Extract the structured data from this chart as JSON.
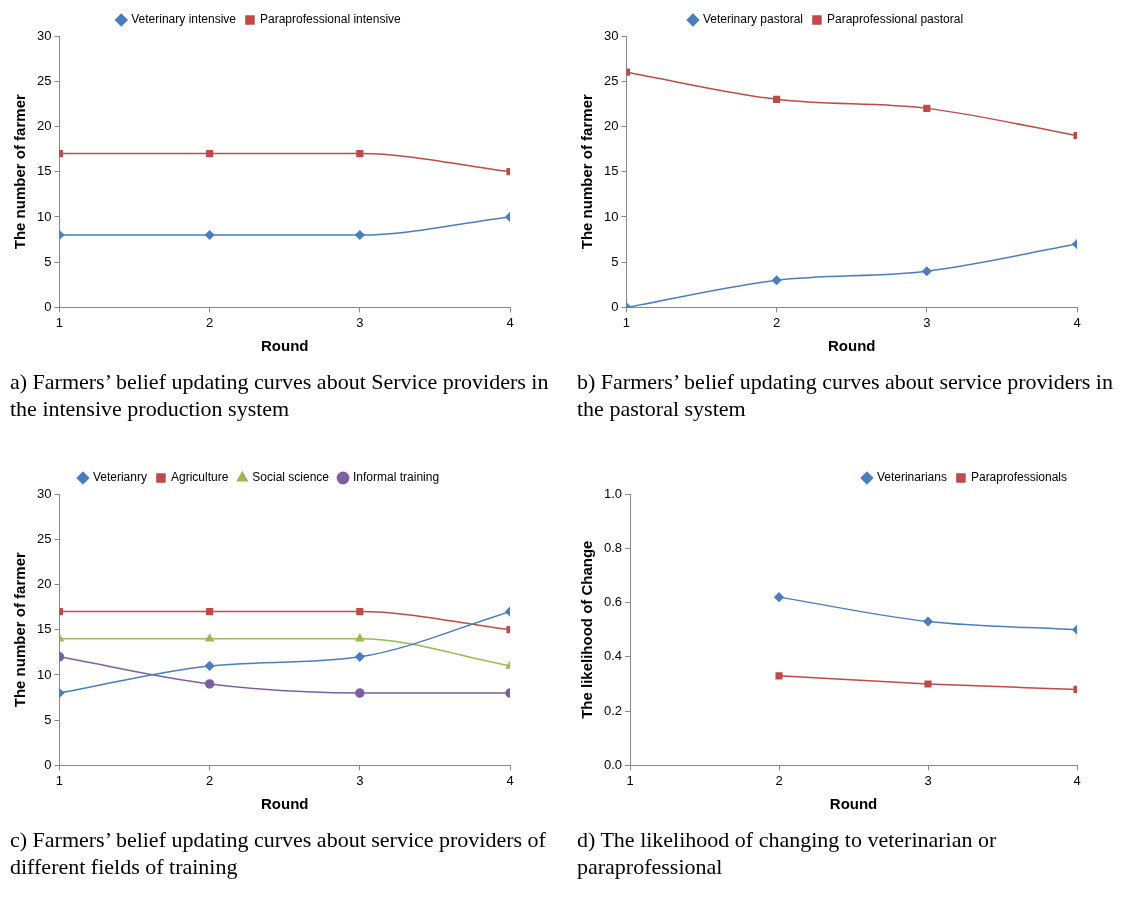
{
  "chart_data": [
    {
      "type": "line",
      "xlabel": "Round",
      "ylabel": "The number of farmer",
      "x": [
        1,
        2,
        3,
        4
      ],
      "xlim": [
        1,
        4
      ],
      "xticks": [
        1,
        2,
        3,
        4
      ],
      "ylim": [
        0,
        30
      ],
      "yticks": [
        0,
        5,
        10,
        15,
        20,
        25,
        30
      ],
      "grid": false,
      "legend": "top",
      "annotations": [
        "a) Farmers’ belief updating curves about  Service providers in the intensive production system"
      ],
      "series": [
        {
          "name": "Veterinary intensive",
          "color": "#4a7ebb",
          "marker": "diamond",
          "values": [
            8,
            8,
            8,
            10
          ]
        },
        {
          "name": "Paraprofessional intensive",
          "color": "#be4b48",
          "marker": "square",
          "values": [
            17,
            17,
            17,
            15
          ]
        }
      ]
    },
    {
      "type": "line",
      "xlabel": "Round",
      "ylabel": "The number of farmer",
      "x": [
        1,
        2,
        3,
        4
      ],
      "xlim": [
        1,
        4
      ],
      "xticks": [
        1,
        2,
        3,
        4
      ],
      "ylim": [
        0,
        30
      ],
      "yticks": [
        0,
        5,
        10,
        15,
        20,
        25,
        30
      ],
      "grid": false,
      "legend": "top",
      "annotations": [
        "b) Farmers’ belief updating curves about service providers in the pastoral system"
      ],
      "series": [
        {
          "name": "Veterinary pastoral",
          "color": "#4a7ebb",
          "marker": "diamond",
          "values": [
            0,
            3,
            4,
            7
          ]
        },
        {
          "name": "Paraprofessional pastoral",
          "color": "#be4b48",
          "marker": "square",
          "values": [
            26,
            23,
            22,
            19
          ]
        }
      ]
    },
    {
      "type": "line",
      "xlabel": "Round",
      "ylabel": "The number of farmer",
      "x": [
        1,
        2,
        3,
        4
      ],
      "xlim": [
        1,
        4
      ],
      "xticks": [
        1,
        2,
        3,
        4
      ],
      "ylim": [
        0,
        30
      ],
      "yticks": [
        0,
        5,
        10,
        15,
        20,
        25,
        30
      ],
      "grid": false,
      "legend": "top",
      "annotations": [
        "c) Farmers’ belief updating  curves about  service providers of different fields of training"
      ],
      "series": [
        {
          "name": "Veterianry",
          "color": "#4a7ebb",
          "marker": "diamond",
          "values": [
            8,
            11,
            12,
            17
          ]
        },
        {
          "name": "Agriculture",
          "color": "#be4b48",
          "marker": "square",
          "values": [
            17,
            17,
            17,
            15
          ]
        },
        {
          "name": "Social science",
          "color": "#98b954",
          "marker": "triangle",
          "values": [
            14,
            14,
            14,
            11
          ]
        },
        {
          "name": "Informal training",
          "color": "#7d60a0",
          "marker": "circle",
          "values": [
            12,
            9,
            8,
            8
          ]
        }
      ]
    },
    {
      "type": "line",
      "xlabel": "Round",
      "ylabel": "The likelihood of Change",
      "xlim": [
        1,
        4
      ],
      "xticks": [
        1,
        2,
        3,
        4
      ],
      "ylim": [
        0,
        1
      ],
      "yticks": [
        {
          "value": 0,
          "label": "0.0"
        },
        {
          "value": 0.2,
          "label": "0.2"
        },
        {
          "value": 0.4,
          "label": "0.4"
        },
        {
          "value": 0.6,
          "label": "0.6"
        },
        {
          "value": 0.8,
          "label": "0.8"
        },
        {
          "value": 1,
          "label": "1.0"
        }
      ],
      "grid": false,
      "legend": "top right",
      "annotations": [
        "d) The likelihood of changing to veterinarian or paraprofessional"
      ],
      "series": [
        {
          "name": "Veterinarians",
          "color": "#4a7ebb",
          "marker": "diamond",
          "x": [
            2,
            3,
            4
          ],
          "values": [
            0.62,
            0.53,
            0.5
          ]
        },
        {
          "name": "Paraprofessionals",
          "color": "#be4b48",
          "marker": "square",
          "x": [
            2,
            3,
            4
          ],
          "values": [
            0.33,
            0.3,
            0.28
          ]
        }
      ]
    }
  ]
}
